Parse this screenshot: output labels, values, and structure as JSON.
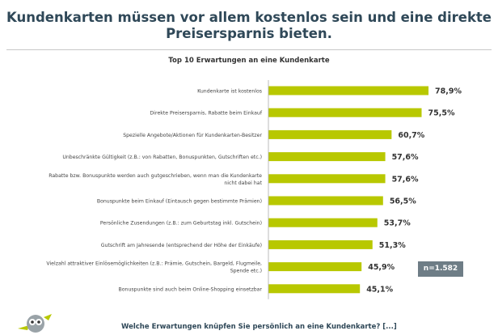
{
  "headline": "Kundenkarten müssen vor allem kostenlos sein und eine direkte Preisersparnis bieten.",
  "sample_size": "n=1.582",
  "footer_question": "Welche Erwartungen knüpfen Sie persönlich an eine Kundenkarte? [...]",
  "colors": {
    "bar": "#b8c800",
    "headline": "#2f4858",
    "badge": "#6e7d86"
  },
  "chart_data": {
    "type": "bar",
    "orientation": "horizontal",
    "title": "Top 10 Erwartungen an eine Kundenkarte",
    "xlabel": "",
    "ylabel": "",
    "xlim": [
      0,
      100
    ],
    "unit": "%",
    "categories": [
      "Kundenkarte ist kostenlos",
      "Direkte Preisersparnis, Rabatte beim Einkauf",
      "Spezielle Angebote/Aktionen für Kundenkarten-Besitzer",
      "Unbeschränkte Gültigkeit (z.B.: von Rabatten, Bonuspunkten, Gutschriften etc.)",
      "Rabatte bzw. Bonuspunkte werden auch gutgeschrieben, wenn man die Kundenkarte nicht dabei hat",
      "Bonuspunkte beim Einkauf (Eintausch gegen bestimmte Prämien)",
      "Persönliche Zusendungen (z.B.: zum Geburtstag inkl. Gutschein)",
      "Gutschrift am Jahresende (entsprechend der Höhe der Einkäufe)",
      "Vielzahl attraktiver Einlösemöglichkeiten (z.B.: Prämie, Gutschein, Bargeld, Flugmeile, Spende etc.)",
      "Bonuspunkte sind auch beim Online-Shopping einsetzbar"
    ],
    "category_lines": [
      [
        "Kundenkarte ist kostenlos"
      ],
      [
        "Direkte Preisersparnis, Rabatte beim Einkauf"
      ],
      [
        "Spezielle Angebote/Aktionen für Kundenkarten-Besitzer"
      ],
      [
        "Unbeschränkte Gültigkeit (z.B.: von Rabatten, Bonuspunkten, Gutschriften etc.)"
      ],
      [
        "Rabatte bzw. Bonuspunkte werden auch gutgeschrieben, wenn man die Kundenkarte",
        "nicht dabei hat"
      ],
      [
        "Bonuspunkte beim Einkauf (Eintausch gegen bestimmte Prämien)"
      ],
      [
        "Persönliche Zusendungen (z.B.: zum Geburtstag inkl. Gutschein)"
      ],
      [
        "Gutschrift am Jahresende (entsprechend der Höhe der Einkäufe)"
      ],
      [
        "Vielzahl attraktiver Einlösemöglichkeiten (z.B.: Prämie, Gutschein, Bargeld, Flugmeile,",
        "Spende etc.)"
      ],
      [
        "Bonuspunkte sind auch beim Online-Shopping einsetzbar"
      ]
    ],
    "values": [
      78.9,
      75.5,
      60.7,
      57.6,
      57.6,
      56.5,
      53.7,
      51.3,
      45.9,
      45.1
    ],
    "value_labels": [
      "78,9%",
      "75,5%",
      "60,7%",
      "57,6%",
      "57,6%",
      "56,5%",
      "53,7%",
      "51,3%",
      "45,9%",
      "45,1%"
    ]
  }
}
